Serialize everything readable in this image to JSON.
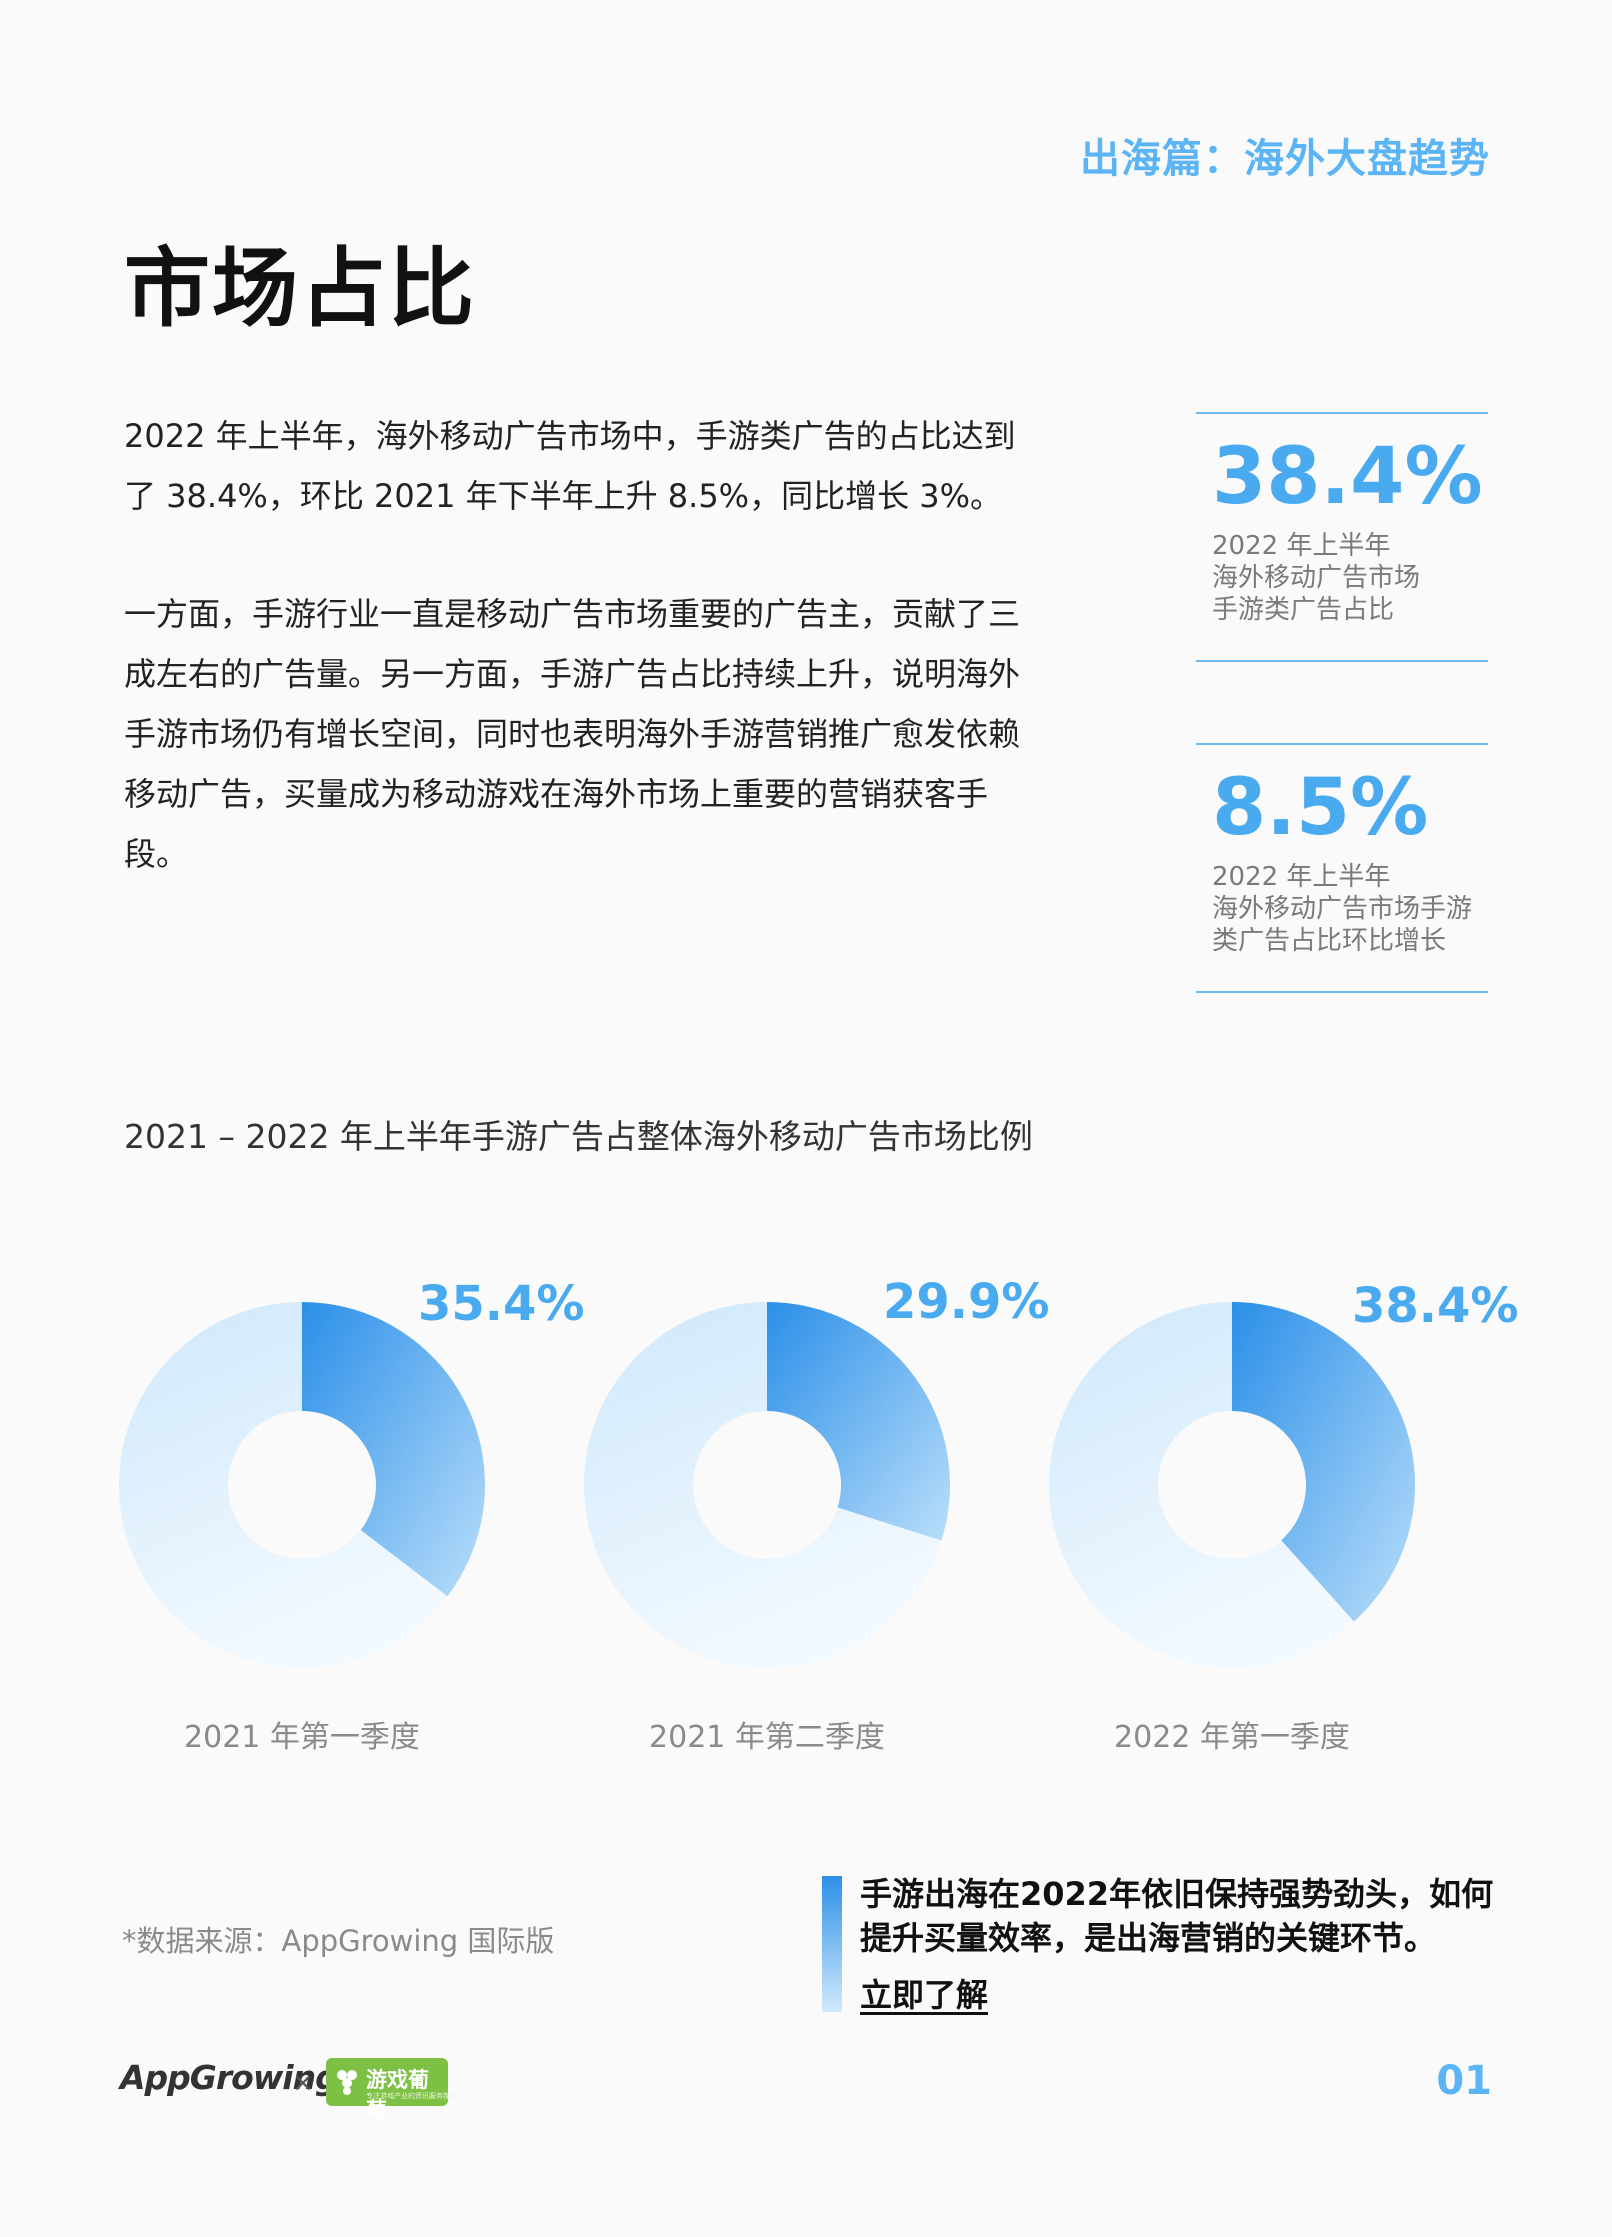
{
  "header": {
    "section_tag": "出海篇：海外大盘趋势",
    "title": "市场占比"
  },
  "body": {
    "paragraph1": "2022  年上半年，海外移动广告市场中，手游类广告的占比达到了 38.4%，环比 2021 年下半年上升 8.5%，同比增长 3%。",
    "paragraph2": "一方面，手游行业一直是移动广告市场重要的广告主，贡献了三成左右的广告量。另一方面，手游广告占比持续上升，说明海外手游市场仍有增长空间，同时也表明海外手游营销推广愈发依赖移动广告，买量成为移动游戏在海外市场上重要的营销获客手段。"
  },
  "stats": [
    {
      "value": "38.4%",
      "desc": "2022 年上半年\n海外移动广告市场\n手游类广告占比"
    },
    {
      "value": "8.5%",
      "desc": "2022 年上半年\n海外移动广告市场手游\n类广告占比环比增长"
    }
  ],
  "chart_data": {
    "type": "pie",
    "variant": "donut",
    "title": "2021 – 2022 年上半年手游广告占整体海外移动广告市场比例",
    "categories": [
      "2021 年第一季度",
      "2021 年第二季度",
      "2022 年第一季度"
    ],
    "values": [
      35.4,
      29.9,
      38.4
    ],
    "value_labels": [
      "35.4%",
      "29.9%",
      "38.4%"
    ],
    "unit": "%",
    "colors": {
      "highlight": "#2b8fe8",
      "highlight_end": "#b9defa",
      "rest": "#cfe8fb",
      "rest_end": "#f2f9ff",
      "label": "#4aaaf0"
    }
  },
  "footer": {
    "source": "*数据来源：AppGrowing 国际版",
    "cta_text": "手游出海在2022年依旧保持强势劲头，如何提升买量效率，是出海营销的关键环节。",
    "cta_link": "立即了解",
    "logo_app": "AppGrowing",
    "logo_x": "×",
    "logo_game": "游戏葡萄",
    "logo_game_sub": "专注游戏产业的资讯服务媒体",
    "page_number": "01"
  }
}
